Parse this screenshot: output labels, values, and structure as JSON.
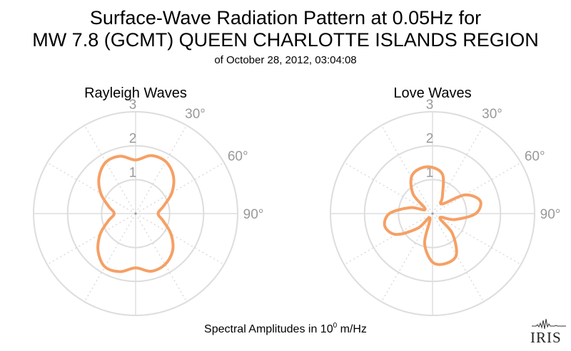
{
  "header": {
    "title_line1": "Surface-Wave Radiation Pattern at 0.05Hz for",
    "title_line2": "MW 7.8 (GCMT) QUEEN CHARLOTTE ISLANDS REGION",
    "subtitle": "of October 28, 2012, 03:04:08"
  },
  "footer": {
    "label_prefix": "Spectral Amplitudes in 10",
    "label_exponent": "0",
    "label_suffix": " m/Hz"
  },
  "logo": {
    "text": "IRIS"
  },
  "colors": {
    "curve": "#f5a065",
    "grid": "#dddddd",
    "tick_text": "#999999"
  },
  "chart_data": [
    {
      "type": "polar-line",
      "title": "Rayleigh Waves",
      "radial_ticks": [
        "1",
        "2",
        "3"
      ],
      "rmax": 3,
      "angle_labels": [
        "30°",
        "60°",
        "90°"
      ],
      "angle_unit": "degrees azimuth (0° at top, clockwise)",
      "series": [
        {
          "theta_deg": [
            0,
            15,
            30,
            45,
            60,
            75,
            90,
            105,
            120,
            135,
            150,
            165,
            180,
            195,
            210,
            225,
            240,
            255,
            270,
            285,
            300,
            315,
            330,
            345
          ],
          "r": [
            1.58,
            1.77,
            1.77,
            1.57,
            1.23,
            0.85,
            0.66,
            0.84,
            1.2,
            1.54,
            1.73,
            1.76,
            1.6,
            1.77,
            1.81,
            1.56,
            1.2,
            0.83,
            0.63,
            0.82,
            1.18,
            1.52,
            1.75,
            1.75
          ]
        }
      ]
    },
    {
      "type": "polar-line",
      "title": "Love Waves",
      "radial_ticks": [
        "1",
        "2",
        "3"
      ],
      "rmax": 3,
      "angle_labels": [
        "30°",
        "60°",
        "90°"
      ],
      "angle_unit": "degrees azimuth (0° at top, clockwise)",
      "series": [
        {
          "theta_deg": [
            0,
            15,
            30,
            45,
            60,
            75,
            90,
            105,
            120,
            135,
            150,
            165,
            180,
            195,
            210,
            225,
            240,
            255,
            270,
            285,
            300,
            315,
            330,
            345
          ],
          "r": [
            1.36,
            1.17,
            0.58,
            0.4,
            1.1,
            1.45,
            1.27,
            0.68,
            0.25,
            0.82,
            1.4,
            1.52,
            1.43,
            0.9,
            0.15,
            0.61,
            1.23,
            1.45,
            1.27,
            0.68,
            0.25,
            0.8,
            1.24,
            1.38
          ]
        }
      ]
    }
  ]
}
